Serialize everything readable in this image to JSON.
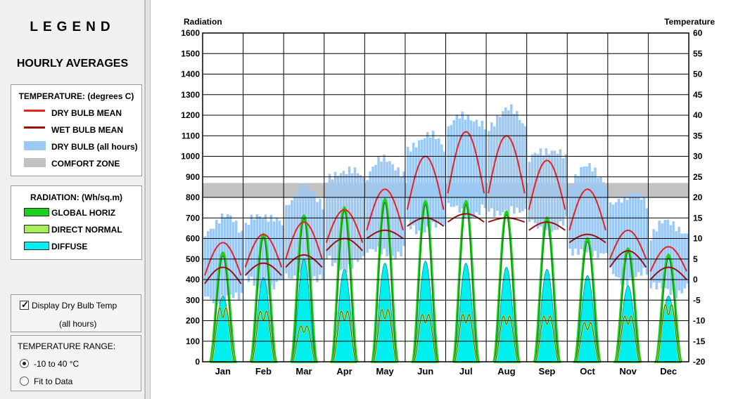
{
  "legend": {
    "title": "LEGEND",
    "subtitle": "HOURLY AVERAGES",
    "temperature": {
      "heading": "TEMPERATURE: (degrees C)",
      "items": [
        {
          "label": "DRY BULB MEAN",
          "color": "#e8221e",
          "swatch": "line"
        },
        {
          "label": "WET BULB MEAN",
          "color": "#9c1010",
          "swatch": "line"
        },
        {
          "label": "DRY BULB (all hours)",
          "color": "#9cc8f4",
          "swatch": "bar"
        },
        {
          "label": "COMFORT ZONE",
          "color": "#c2c2c2",
          "swatch": "bar"
        }
      ]
    },
    "radiation": {
      "heading": "RADIATION: (Wh/sq.m)",
      "items": [
        {
          "label": "GLOBAL HORIZ",
          "color": "#1ad41a"
        },
        {
          "label": "DIRECT NORMAL",
          "color": "#aaee55"
        },
        {
          "label": "DIFFUSE",
          "color": "#00f0f0"
        }
      ]
    }
  },
  "controls": {
    "display_dry_bulb_label": "Display Dry Bulb Temp",
    "display_dry_bulb_sub": "(all hours)",
    "display_dry_bulb_checked": true,
    "temperature_range_label": "TEMPERATURE RANGE:",
    "options": [
      {
        "label": "-10 to 40 °C",
        "selected": true
      },
      {
        "label": "Fit to Data",
        "selected": false
      }
    ]
  },
  "chart_data": {
    "type": "area",
    "ylabel": "Radiation",
    "y2label": "Temperature",
    "ylim": [
      0,
      1600
    ],
    "y2lim": [
      -20,
      60
    ],
    "y_ticks": [
      "0",
      "100",
      "200",
      "300",
      "400",
      "500",
      "600",
      "700",
      "800",
      "900",
      "1000",
      "1100",
      "1200",
      "1300",
      "1400",
      "1500",
      "1600"
    ],
    "y2_ticks": [
      "-20",
      "-15",
      "-10",
      "-5",
      "0",
      "5",
      "10",
      "15",
      "20",
      "25",
      "30",
      "35",
      "40",
      "45",
      "50",
      "55",
      "60"
    ],
    "categories": [
      "Jan",
      "Feb",
      "Mar",
      "Apr",
      "May",
      "Jun",
      "Jul",
      "Aug",
      "Sep",
      "Oct",
      "Nov",
      "Dec"
    ],
    "comfort_zone": [
      20,
      23.5
    ],
    "grid": true,
    "series": [
      {
        "name": "GLOBAL HORIZ",
        "unit": "Wh/sq.m",
        "peak_values": [
          530,
          620,
          710,
          750,
          790,
          780,
          780,
          730,
          700,
          600,
          550,
          520
        ]
      },
      {
        "name": "DIRECT NORMAL",
        "unit": "Wh/sq.m",
        "peak_values": [
          330,
          310,
          220,
          310,
          320,
          290,
          290,
          280,
          280,
          240,
          280,
          350
        ]
      },
      {
        "name": "DIFFUSE",
        "unit": "Wh/sq.m",
        "peak_values": [
          320,
          410,
          500,
          450,
          480,
          490,
          480,
          460,
          450,
          420,
          370,
          320
        ]
      },
      {
        "name": "DRY BULB MEAN",
        "unit": "degrees C",
        "daily_min": [
          1,
          3,
          5,
          9,
          12,
          17,
          21,
          21,
          17,
          12,
          5,
          2
        ],
        "daily_max": [
          9,
          11,
          14,
          17,
          22,
          30,
          36,
          35,
          29,
          22,
          12,
          8
        ]
      },
      {
        "name": "WET BULB MEAN",
        "unit": "degrees C",
        "daily_min": [
          -1,
          1,
          3,
          7,
          10,
          13,
          14,
          14,
          12,
          9,
          3,
          0
        ],
        "daily_max": [
          3,
          4,
          6,
          10,
          12,
          15,
          16,
          15,
          14,
          11,
          7,
          3
        ]
      },
      {
        "name": "DRY BULB (all hours)",
        "unit": "degrees C",
        "min": [
          -5,
          -2,
          0,
          3,
          6,
          12,
          16,
          16,
          12,
          6,
          0,
          -3
        ],
        "max": [
          15,
          16,
          22,
          27,
          29,
          35,
          40,
          41,
          32,
          27,
          21,
          14
        ]
      }
    ]
  }
}
